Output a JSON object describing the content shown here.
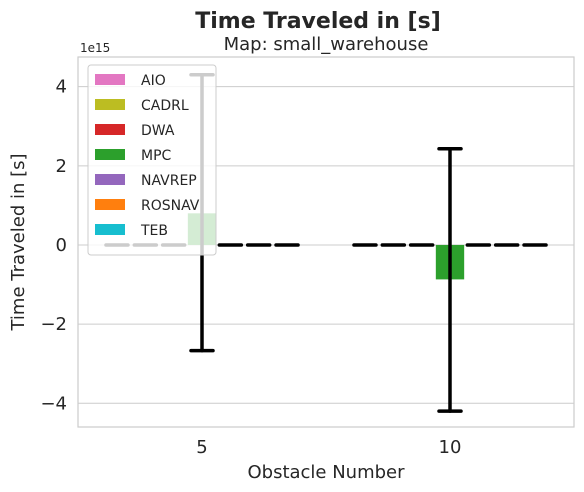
{
  "chart_data": {
    "type": "bar",
    "title": "Time Traveled in [s]",
    "subtitle": "Map: small_warehouse",
    "xlabel": "Obstacle Number",
    "ylabel": "Time Traveled in [s]",
    "y_offset_label": "1e15",
    "categories": [
      "5",
      "10"
    ],
    "y_ticks": [
      -4,
      -2,
      0,
      2,
      4
    ],
    "y_tick_labels": [
      "−4",
      "−2",
      "0",
      "2",
      "4"
    ],
    "ylim": [
      -4.6,
      4.75
    ],
    "grid": true,
    "legend_position": "top-left",
    "series": [
      {
        "name": "AIO",
        "color": "#e377c2",
        "values": [
          0,
          0
        ],
        "errors": [
          null,
          null
        ]
      },
      {
        "name": "CADRL",
        "color": "#bcbd22",
        "values": [
          0,
          0
        ],
        "errors": [
          null,
          null
        ]
      },
      {
        "name": "DWA",
        "color": "#d62728",
        "values": [
          0,
          0
        ],
        "errors": [
          null,
          null
        ]
      },
      {
        "name": "MPC",
        "color": "#2ca02c",
        "values": [
          0.8,
          -0.87
        ],
        "errors": [
          [
            -2.67,
            4.3
          ],
          [
            -4.2,
            2.43
          ]
        ]
      },
      {
        "name": "NAVREP",
        "color": "#9467bd",
        "values": [
          0,
          0
        ],
        "errors": [
          null,
          null
        ]
      },
      {
        "name": "ROSNAV",
        "color": "#ff7f0e",
        "values": [
          0,
          0
        ],
        "errors": [
          null,
          null
        ]
      },
      {
        "name": "TEB",
        "color": "#17becf",
        "values": [
          0,
          0
        ],
        "errors": [
          null,
          null
        ]
      }
    ]
  }
}
